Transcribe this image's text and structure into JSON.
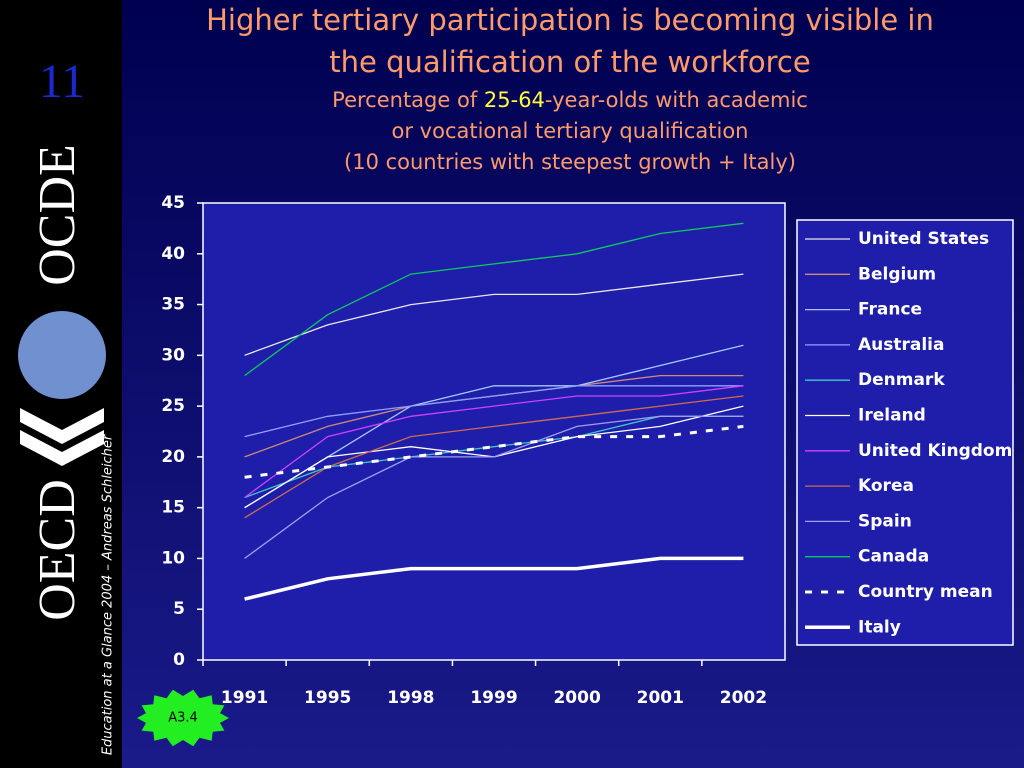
{
  "slide_number": "11",
  "logo": {
    "left": "OECD",
    "right": "OCDE"
  },
  "footer": "Education at a Glance 2004 – Andreas Schleicher",
  "badge": "A3.4",
  "chart_data": {
    "type": "line",
    "title": [
      "Higher tertiary participation is becoming visible in",
      "the qualification of the workforce"
    ],
    "subtitle": [
      [
        "Percentage of ",
        "25-64",
        "-year-olds with academic"
      ],
      [
        "or vocational tertiary qualification"
      ],
      [
        "(10 countries with steepest growth + Italy)"
      ]
    ],
    "categories": [
      "1991",
      "1995",
      "1998",
      "1999",
      "2000",
      "2001",
      "2002"
    ],
    "ylim": [
      0,
      45
    ],
    "yticks": [
      0,
      5,
      10,
      15,
      20,
      25,
      30,
      35,
      40,
      45
    ],
    "grid": false,
    "legend": "right",
    "series": [
      {
        "name": "United States",
        "color": "#e8e8e8",
        "values": [
          30,
          33,
          35,
          36,
          36,
          37,
          38
        ]
      },
      {
        "name": "Belgium",
        "color": "#d08a7a",
        "values": [
          20,
          23,
          25,
          26,
          27,
          28,
          28
        ]
      },
      {
        "name": "France",
        "color": "#a8c8ff",
        "values": [
          15,
          20,
          25,
          27,
          27,
          29,
          31
        ]
      },
      {
        "name": "Australia",
        "color": "#8fa0ff",
        "values": [
          22,
          24,
          25,
          26,
          27,
          27,
          27
        ]
      },
      {
        "name": "Denmark",
        "color": "#40c8c8",
        "values": [
          16,
          19,
          20,
          21,
          22,
          24,
          24
        ]
      },
      {
        "name": "Ireland",
        "color": "#ffffff",
        "values": [
          15,
          20,
          21,
          20,
          22,
          23,
          25
        ]
      },
      {
        "name": "United Kingdom",
        "color": "#d040ff",
        "values": [
          16,
          22,
          24,
          25,
          26,
          26,
          27
        ]
      },
      {
        "name": "Korea",
        "color": "#d06a50",
        "values": [
          14,
          19,
          22,
          23,
          24,
          25,
          26
        ]
      },
      {
        "name": "Spain",
        "color": "#a0a0f0",
        "values": [
          10,
          16,
          20,
          20,
          23,
          24,
          24
        ]
      },
      {
        "name": "Canada",
        "color": "#10c860",
        "values": [
          28,
          34,
          38,
          39,
          40,
          42,
          43
        ]
      },
      {
        "name": "Country mean",
        "color": "#ffffff",
        "style": "dashed",
        "values": [
          18,
          19,
          20,
          21,
          22,
          22,
          23
        ]
      },
      {
        "name": "Italy",
        "color": "#ffffff",
        "style": "thick",
        "values": [
          6,
          8,
          9,
          9,
          9,
          10,
          10
        ]
      }
    ]
  }
}
